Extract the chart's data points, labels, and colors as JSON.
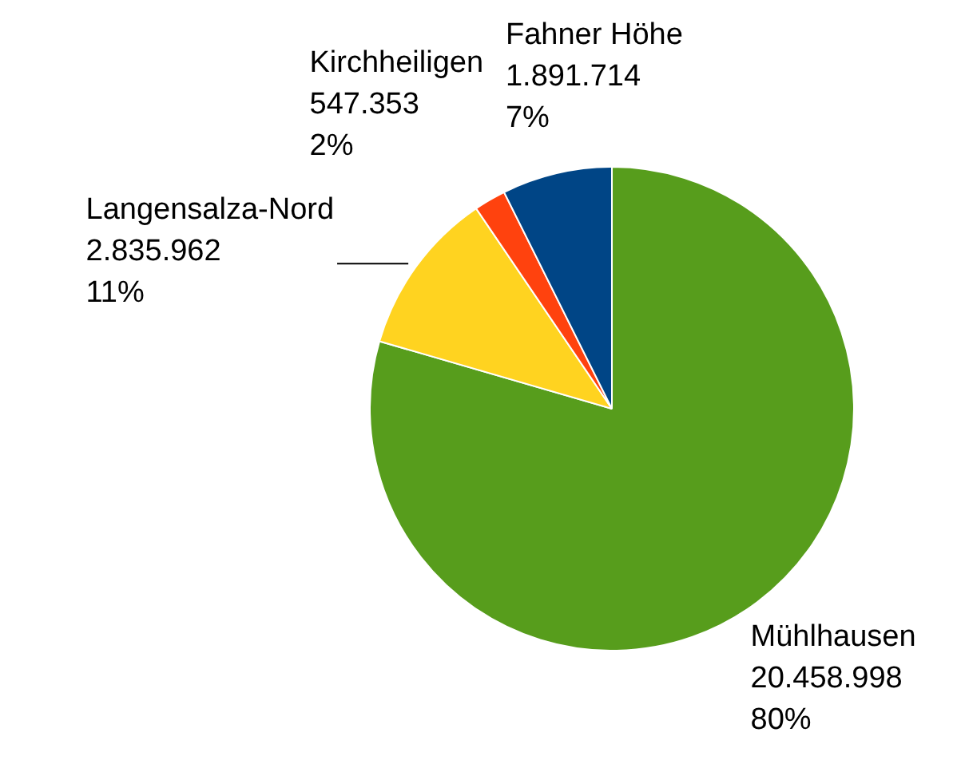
{
  "chart_data": {
    "type": "pie",
    "categories": [
      "Mühlhausen",
      "Langensalza-Nord",
      "Kirchheiligen",
      "Fahner Höhe"
    ],
    "values": [
      20458998,
      2835962,
      547353,
      1891714
    ],
    "value_labels": [
      "20.458.998\n80%",
      "2.835.962\n11%",
      "547.353\n2%",
      "1.891.714\n7%"
    ],
    "colors": [
      "#579d1c",
      "#ffd320",
      "#ff420e",
      "#004586"
    ],
    "legend": false
  }
}
